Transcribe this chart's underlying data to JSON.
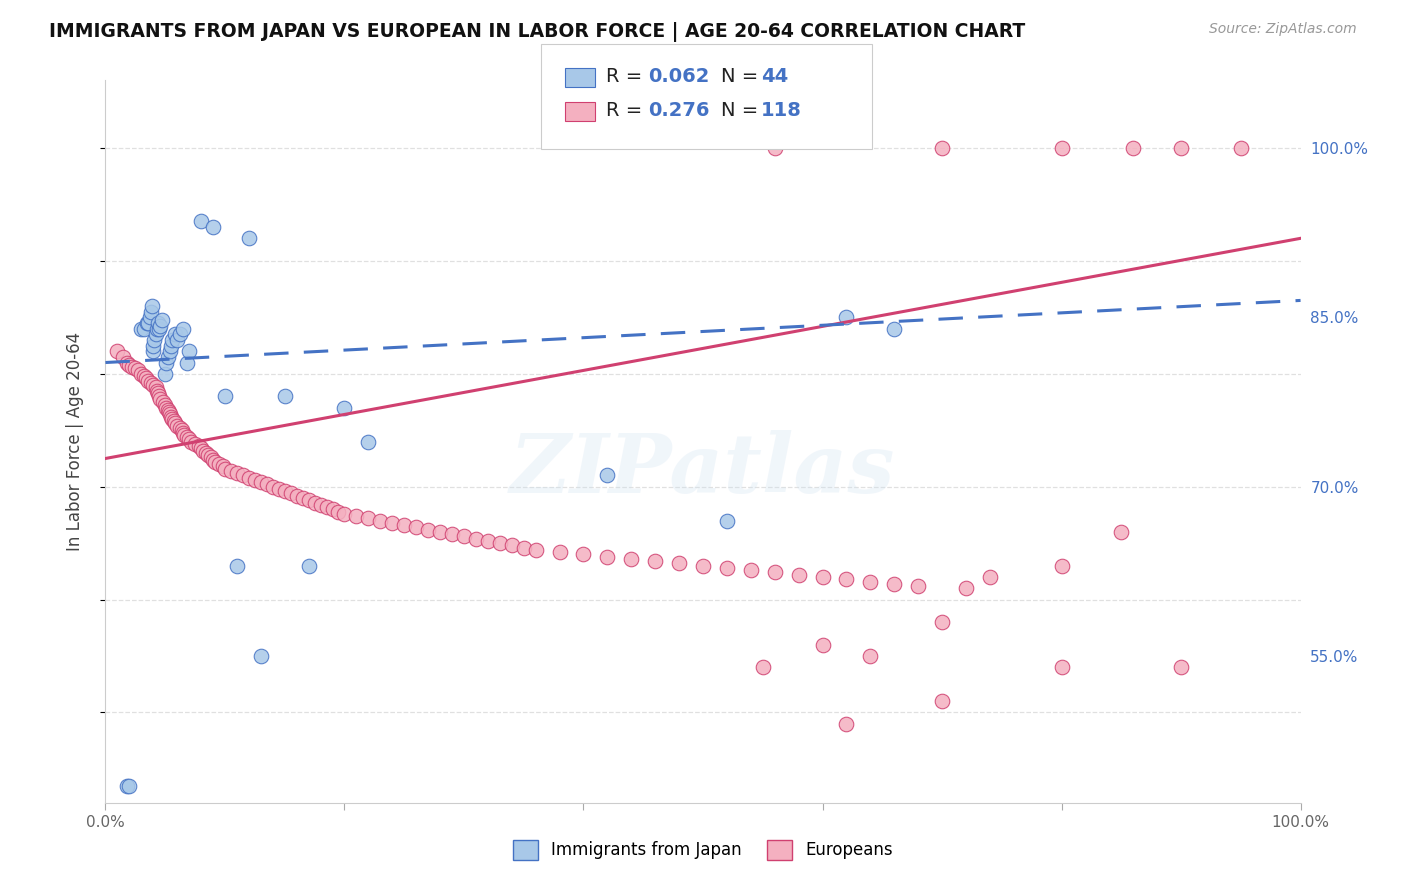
{
  "title": "IMMIGRANTS FROM JAPAN VS EUROPEAN IN LABOR FORCE | AGE 20-64 CORRELATION CHART",
  "source": "Source: ZipAtlas.com",
  "ylabel": "In Labor Force | Age 20-64",
  "xlim": [
    0.0,
    1.0
  ],
  "ylim": [
    0.42,
    1.06
  ],
  "ytick_positions": [
    0.55,
    0.7,
    0.85,
    1.0
  ],
  "ytick_labels": [
    "55.0%",
    "70.0%",
    "85.0%",
    "100.0%"
  ],
  "japan_color": "#a8c8e8",
  "europe_color": "#f4b0c0",
  "japan_edge_color": "#4472C4",
  "europe_edge_color": "#d04070",
  "japan_line_color": "#4472C4",
  "europe_line_color": "#d04070",
  "legend_text_color": "#4472C4",
  "watermark": "ZIPatlas",
  "background_color": "#ffffff",
  "grid_color": "#e0e0e0",
  "japan_R": 0.062,
  "japan_N": 44,
  "europe_R": 0.276,
  "europe_N": 118,
  "japan_x": [
    0.018,
    0.02,
    0.03,
    0.032,
    0.035,
    0.036,
    0.037,
    0.038,
    0.039,
    0.04,
    0.04,
    0.041,
    0.042,
    0.043,
    0.044,
    0.045,
    0.046,
    0.047,
    0.05,
    0.051,
    0.052,
    0.054,
    0.055,
    0.056,
    0.058,
    0.06,
    0.062,
    0.065,
    0.068,
    0.07,
    0.08,
    0.09,
    0.1,
    0.11,
    0.12,
    0.13,
    0.15,
    0.17,
    0.2,
    0.22,
    0.42,
    0.52,
    0.62,
    0.66
  ],
  "japan_y": [
    0.435,
    0.435,
    0.84,
    0.84,
    0.845,
    0.845,
    0.85,
    0.855,
    0.86,
    0.82,
    0.825,
    0.83,
    0.835,
    0.84,
    0.845,
    0.84,
    0.842,
    0.848,
    0.8,
    0.81,
    0.815,
    0.82,
    0.825,
    0.83,
    0.835,
    0.83,
    0.835,
    0.84,
    0.81,
    0.82,
    0.935,
    0.93,
    0.78,
    0.63,
    0.92,
    0.55,
    0.78,
    0.63,
    0.77,
    0.74,
    0.71,
    0.67,
    0.85,
    0.84
  ],
  "europe_x": [
    0.01,
    0.015,
    0.018,
    0.02,
    0.022,
    0.025,
    0.027,
    0.03,
    0.032,
    0.034,
    0.036,
    0.038,
    0.04,
    0.042,
    0.043,
    0.044,
    0.045,
    0.046,
    0.048,
    0.05,
    0.051,
    0.052,
    0.053,
    0.054,
    0.055,
    0.056,
    0.057,
    0.058,
    0.06,
    0.062,
    0.064,
    0.065,
    0.066,
    0.068,
    0.07,
    0.072,
    0.075,
    0.078,
    0.08,
    0.082,
    0.084,
    0.086,
    0.088,
    0.09,
    0.092,
    0.095,
    0.098,
    0.1,
    0.105,
    0.11,
    0.115,
    0.12,
    0.125,
    0.13,
    0.135,
    0.14,
    0.145,
    0.15,
    0.155,
    0.16,
    0.165,
    0.17,
    0.175,
    0.18,
    0.185,
    0.19,
    0.195,
    0.2,
    0.21,
    0.22,
    0.23,
    0.24,
    0.25,
    0.26,
    0.27,
    0.28,
    0.29,
    0.3,
    0.31,
    0.32,
    0.33,
    0.34,
    0.35,
    0.36,
    0.38,
    0.4,
    0.42,
    0.44,
    0.46,
    0.48,
    0.5,
    0.52,
    0.54,
    0.56,
    0.58,
    0.6,
    0.62,
    0.64,
    0.66,
    0.68,
    0.55,
    0.6,
    0.64,
    0.7,
    0.72,
    0.74,
    0.8,
    0.85,
    0.62,
    0.7,
    0.8,
    0.9,
    0.56,
    0.7,
    0.8,
    0.86,
    0.9,
    0.95
  ],
  "europe_y": [
    0.82,
    0.815,
    0.81,
    0.808,
    0.806,
    0.805,
    0.803,
    0.8,
    0.798,
    0.796,
    0.794,
    0.792,
    0.79,
    0.788,
    0.785,
    0.783,
    0.78,
    0.778,
    0.775,
    0.772,
    0.77,
    0.768,
    0.766,
    0.764,
    0.762,
    0.76,
    0.758,
    0.756,
    0.754,
    0.752,
    0.75,
    0.748,
    0.746,
    0.744,
    0.742,
    0.74,
    0.738,
    0.736,
    0.734,
    0.732,
    0.73,
    0.728,
    0.726,
    0.724,
    0.722,
    0.72,
    0.718,
    0.716,
    0.714,
    0.712,
    0.71,
    0.708,
    0.706,
    0.704,
    0.702,
    0.7,
    0.698,
    0.696,
    0.694,
    0.692,
    0.69,
    0.688,
    0.686,
    0.684,
    0.682,
    0.68,
    0.678,
    0.676,
    0.674,
    0.672,
    0.67,
    0.668,
    0.666,
    0.664,
    0.662,
    0.66,
    0.658,
    0.656,
    0.654,
    0.652,
    0.65,
    0.648,
    0.646,
    0.644,
    0.642,
    0.64,
    0.638,
    0.636,
    0.634,
    0.632,
    0.63,
    0.628,
    0.626,
    0.624,
    0.622,
    0.62,
    0.618,
    0.616,
    0.614,
    0.612,
    0.54,
    0.56,
    0.55,
    0.58,
    0.61,
    0.62,
    0.63,
    0.66,
    0.49,
    0.51,
    0.54,
    0.54,
    1.0,
    1.0,
    1.0,
    1.0,
    1.0,
    1.0
  ]
}
